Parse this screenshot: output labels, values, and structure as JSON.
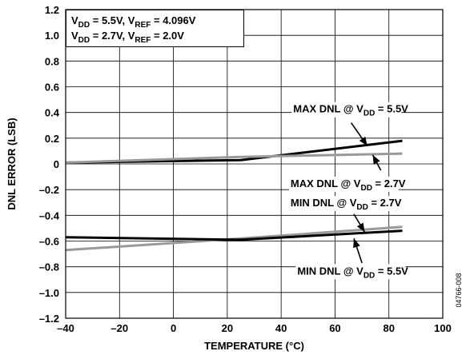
{
  "chart_data": {
    "type": "line",
    "xlabel": "TEMPERATURE (°C)",
    "ylabel": "DNL ERROR (LSB)",
    "xlim": [
      -40,
      100
    ],
    "ylim": [
      -1.2,
      1.2
    ],
    "x_ticks": [
      -40,
      -20,
      0,
      20,
      40,
      60,
      80,
      100
    ],
    "x_tick_labels": [
      "–40",
      "–20",
      "0",
      "20",
      "40",
      "60",
      "80",
      "100"
    ],
    "y_ticks": [
      -1.2,
      -1.0,
      -0.8,
      -0.6,
      -0.4,
      -0.2,
      0,
      0.2,
      0.4,
      0.6,
      0.8,
      1.0,
      1.2
    ],
    "y_tick_labels": [
      "–1.2",
      "–1.0",
      "–0.8",
      "–0.6",
      "–0.4",
      "–0.2",
      "0",
      "0.2",
      "0.4",
      "0.6",
      "0.8",
      "1.0",
      "1.2"
    ],
    "grid": true,
    "series": [
      {
        "color": "#000000",
        "points": [
          [
            -40,
            0.01
          ],
          [
            25,
            0.03
          ],
          [
            85,
            0.18
          ]
        ]
      },
      {
        "color": "#999999",
        "points": [
          [
            -40,
            0.01
          ],
          [
            25,
            0.055
          ],
          [
            85,
            0.08
          ]
        ]
      },
      {
        "color": "#999999",
        "points": [
          [
            -40,
            -0.67
          ],
          [
            25,
            -0.58
          ],
          [
            85,
            -0.49
          ]
        ]
      },
      {
        "color": "#000000",
        "points": [
          [
            -40,
            -0.57
          ],
          [
            25,
            -0.59
          ],
          [
            85,
            -0.52
          ]
        ]
      }
    ],
    "legend_box": {
      "lines": [
        [
          {
            "t": "V",
            "s": "n"
          },
          {
            "t": "DD",
            "s": "sub"
          },
          {
            "t": " = 5.5V, V",
            "s": "n"
          },
          {
            "t": "REF",
            "s": "sub"
          },
          {
            "t": " = 4.096V",
            "s": "n"
          }
        ],
        [
          {
            "t": "V",
            "s": "n"
          },
          {
            "t": "DD",
            "s": "sub"
          },
          {
            "t": " = 2.7V, V",
            "s": "n"
          },
          {
            "t": "REF",
            "s": "sub"
          },
          {
            "t": " = 2.0V",
            "s": "n"
          }
        ]
      ]
    },
    "annotations": [
      {
        "id": "max-5v",
        "parts": [
          {
            "t": "MAX DNL @ V",
            "s": "n"
          },
          {
            "t": "DD",
            "s": "sub"
          },
          {
            "t": " = 5.5V",
            "s": "n"
          }
        ],
        "label_at": [
          44.5,
          0.4
        ],
        "arrow_from": [
          66,
          0.32
        ],
        "arrow_to": [
          72,
          0.14
        ]
      },
      {
        "id": "max-27v",
        "parts": [
          {
            "t": "MAX DNL @ V",
            "s": "n"
          },
          {
            "t": "DD",
            "s": "sub"
          },
          {
            "t": " = 2.7V",
            "s": "n"
          }
        ],
        "label_at": [
          43.5,
          -0.18
        ],
        "arrow_from": [
          77,
          -0.05
        ],
        "arrow_to": [
          74,
          0.07
        ]
      },
      {
        "id": "min-27v",
        "parts": [
          {
            "t": "MIN DNL @ V",
            "s": "n"
          },
          {
            "t": "DD",
            "s": "sub"
          },
          {
            "t": " = 2.7V",
            "s": "n"
          }
        ],
        "label_at": [
          43.5,
          -0.33
        ],
        "arrow_from": [
          67,
          -0.39
        ],
        "arrow_to": [
          71,
          -0.53
        ]
      },
      {
        "id": "min-55v",
        "parts": [
          {
            "t": "MIN DNL @ V",
            "s": "n"
          },
          {
            "t": "DD",
            "s": "sub"
          },
          {
            "t": " = 5.5V",
            "s": "n"
          }
        ],
        "label_at": [
          46,
          -0.86
        ],
        "arrow_from": [
          70,
          -0.77
        ],
        "arrow_to": [
          67,
          -0.58
        ]
      }
    ],
    "figure_id": "04766-008"
  }
}
